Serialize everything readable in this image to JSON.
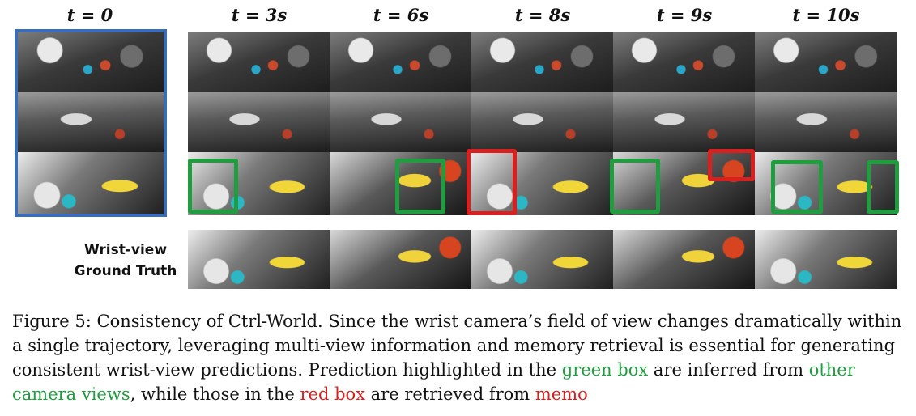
{
  "headers": [
    {
      "var": "t",
      "eq": "=",
      "val": "0"
    },
    {
      "var": "t",
      "eq": "=",
      "val": "3s"
    },
    {
      "var": "t",
      "eq": "=",
      "val": "6s"
    },
    {
      "var": "t",
      "eq": "=",
      "val": "8s"
    },
    {
      "var": "t",
      "eq": "=",
      "val": "9s"
    },
    {
      "var": "t",
      "eq": "=",
      "val": "10s"
    }
  ],
  "ground_truth_label": {
    "line1": "Wrist-view",
    "line2": "Ground Truth"
  },
  "caption": {
    "part1": "Figure 5: Consistency of Ctrl-World. Since the wrist camera’s field of view changes dramatically within a single trajectory, leveraging multi-view information and memory retrieval is essential for generating consistent wrist-view predictions. Prediction highlighted in the ",
    "green_text": "green box",
    "part2": " are inferred from ",
    "green_text2": "other camera views",
    "part3": ", while those in the ",
    "red_text": "red box",
    "part4": " are retrieved from ",
    "red_text2": "memo"
  },
  "colors": {
    "green": "#1f9d3f",
    "red": "#d9201f",
    "blue_frame": "#3a6db3"
  }
}
